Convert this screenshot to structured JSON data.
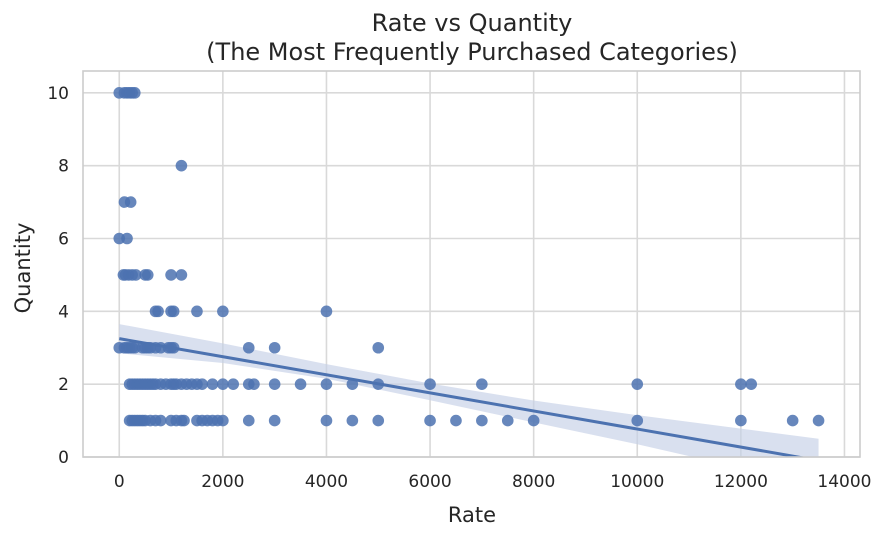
{
  "chart_data": {
    "type": "scatter",
    "title_line1": "Rate vs Quantity",
    "title_line2": "(The Most Frequently Purchased Categories)",
    "xlabel": "Rate",
    "ylabel": "Quantity",
    "xlim": [
      -700,
      14300
    ],
    "ylim": [
      0,
      10.6
    ],
    "xticks": [
      0,
      2000,
      4000,
      6000,
      8000,
      10000,
      12000,
      14000
    ],
    "xtick_labels": [
      "0",
      "2000",
      "4000",
      "6000",
      "8000",
      "10000",
      "12000",
      "14000"
    ],
    "yticks": [
      0,
      2,
      4,
      6,
      8,
      10
    ],
    "ytick_labels": [
      "0",
      "2",
      "4",
      "6",
      "8",
      "10"
    ],
    "grid": true,
    "colors": {
      "points": "#4c72b0",
      "regression_line": "#4c72b0",
      "confidence_band": "#c5d0e6",
      "grid": "#d9d9d9",
      "axes_border": "#cccccc"
    },
    "points": [
      [
        0,
        10
      ],
      [
        100,
        10
      ],
      [
        150,
        10
      ],
      [
        200,
        10
      ],
      [
        250,
        10
      ],
      [
        300,
        10
      ],
      [
        1200,
        8
      ],
      [
        100,
        7
      ],
      [
        220,
        7
      ],
      [
        0,
        6
      ],
      [
        150,
        6
      ],
      [
        80,
        5
      ],
      [
        120,
        5
      ],
      [
        180,
        5
      ],
      [
        250,
        5
      ],
      [
        320,
        5
      ],
      [
        500,
        5
      ],
      [
        550,
        5
      ],
      [
        1000,
        5
      ],
      [
        1200,
        5
      ],
      [
        700,
        4
      ],
      [
        750,
        4
      ],
      [
        1000,
        4
      ],
      [
        1050,
        4
      ],
      [
        1500,
        4
      ],
      [
        2000,
        4
      ],
      [
        4000,
        4
      ],
      [
        0,
        3
      ],
      [
        100,
        3
      ],
      [
        150,
        3
      ],
      [
        200,
        3
      ],
      [
        250,
        3
      ],
      [
        300,
        3
      ],
      [
        450,
        3
      ],
      [
        500,
        3
      ],
      [
        550,
        3
      ],
      [
        600,
        3
      ],
      [
        700,
        3
      ],
      [
        800,
        3
      ],
      [
        950,
        3
      ],
      [
        1000,
        3
      ],
      [
        1050,
        3
      ],
      [
        2500,
        3
      ],
      [
        3000,
        3
      ],
      [
        5000,
        3
      ],
      [
        200,
        2
      ],
      [
        250,
        2
      ],
      [
        300,
        2
      ],
      [
        350,
        2
      ],
      [
        400,
        2
      ],
      [
        450,
        2
      ],
      [
        500,
        2
      ],
      [
        550,
        2
      ],
      [
        600,
        2
      ],
      [
        650,
        2
      ],
      [
        700,
        2
      ],
      [
        800,
        2
      ],
      [
        900,
        2
      ],
      [
        1000,
        2
      ],
      [
        1050,
        2
      ],
      [
        1100,
        2
      ],
      [
        1200,
        2
      ],
      [
        1300,
        2
      ],
      [
        1400,
        2
      ],
      [
        1500,
        2
      ],
      [
        1600,
        2
      ],
      [
        1800,
        2
      ],
      [
        2000,
        2
      ],
      [
        2200,
        2
      ],
      [
        2500,
        2
      ],
      [
        2600,
        2
      ],
      [
        3000,
        2
      ],
      [
        3500,
        2
      ],
      [
        4000,
        2
      ],
      [
        4500,
        2
      ],
      [
        5000,
        2
      ],
      [
        6000,
        2
      ],
      [
        7000,
        2
      ],
      [
        10000,
        2
      ],
      [
        12000,
        2
      ],
      [
        12200,
        2
      ],
      [
        200,
        1
      ],
      [
        250,
        1
      ],
      [
        300,
        1
      ],
      [
        350,
        1
      ],
      [
        400,
        1
      ],
      [
        450,
        1
      ],
      [
        500,
        1
      ],
      [
        600,
        1
      ],
      [
        700,
        1
      ],
      [
        800,
        1
      ],
      [
        1000,
        1
      ],
      [
        1100,
        1
      ],
      [
        1200,
        1
      ],
      [
        1250,
        1
      ],
      [
        1500,
        1
      ],
      [
        1600,
        1
      ],
      [
        1700,
        1
      ],
      [
        1800,
        1
      ],
      [
        1900,
        1
      ],
      [
        2000,
        1
      ],
      [
        2500,
        1
      ],
      [
        3000,
        1
      ],
      [
        4000,
        1
      ],
      [
        4500,
        1
      ],
      [
        5000,
        1
      ],
      [
        6000,
        1
      ],
      [
        6500,
        1
      ],
      [
        7000,
        1
      ],
      [
        7500,
        1
      ],
      [
        8000,
        1
      ],
      [
        10000,
        1
      ],
      [
        12000,
        1
      ],
      [
        13000,
        1
      ],
      [
        13500,
        1
      ]
    ],
    "regression": {
      "x": [
        0,
        13500
      ],
      "y": [
        3.25,
        -0.1
      ]
    },
    "confidence_band": {
      "x": [
        0,
        2000,
        4000,
        6000,
        8000,
        10000,
        12000,
        13500
      ],
      "upper": [
        3.65,
        3.12,
        2.55,
        2.02,
        1.55,
        1.15,
        0.78,
        0.5
      ],
      "lower": [
        2.85,
        2.58,
        2.15,
        1.56,
        0.95,
        0.35,
        -0.3,
        -0.7
      ]
    }
  }
}
